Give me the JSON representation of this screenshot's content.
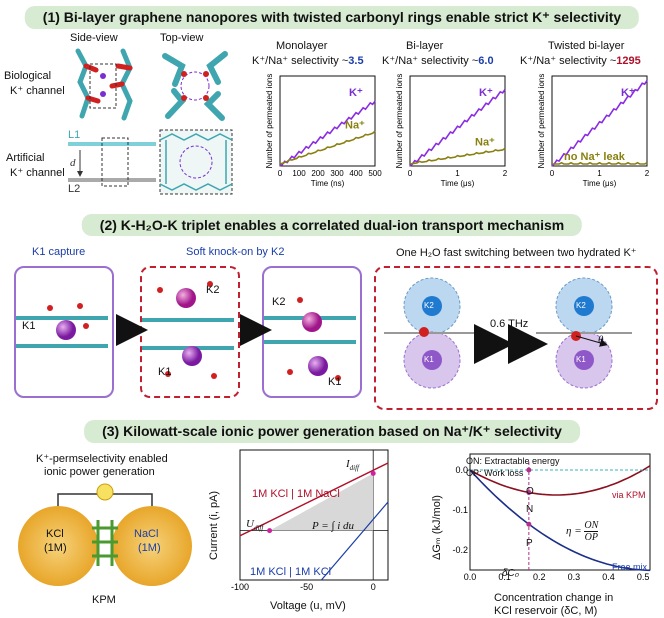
{
  "section1": {
    "title": "(1) Bi-layer graphene nanopores with twisted carbonyl rings enable strict K⁺ selectivity",
    "side_view": "Side-view",
    "top_view": "Top-view",
    "bio_label_1": "Biological",
    "bio_label_2": "K⁺ channel",
    "art_label_1": "Artificial",
    "art_label_2": "K⁺ channel",
    "layer_L1": "L1",
    "layer_L2": "L2",
    "layer_d": "d",
    "plots": [
      {
        "title": "Monolayer",
        "sel_text": "K⁺/Na⁺ selectivity ~",
        "sel_value": "3.5",
        "xlabel": "Time (ns)",
        "ticks": [
          "0",
          "100",
          "200",
          "300",
          "400",
          "500"
        ],
        "k_label": "K⁺",
        "na_label": "Na⁺"
      },
      {
        "title": "Bi-layer",
        "sel_text": "K⁺/Na⁺ selectivity ~",
        "sel_value": "6.0",
        "xlabel": "Time (μs)",
        "ticks": [
          "0",
          "1",
          "2"
        ],
        "k_label": "K⁺",
        "na_label": "Na⁺"
      },
      {
        "title": "Twisted bi-layer",
        "sel_text": "K⁺/Na⁺ selectivity ~",
        "sel_value": "1295",
        "xlabel": "Time (μs)",
        "ticks": [
          "0",
          "1",
          "2"
        ],
        "k_label": "K⁺",
        "na_label": "no Na⁺ leak"
      }
    ],
    "ylabel": "Number of permeated ions"
  },
  "section2": {
    "title": "(2) K-H₂O-K triplet enables a correlated dual-ion transport mechanism",
    "k1_capture": "K1 capture",
    "knock_on": "Soft knock-on by K2",
    "switch_title": "One H₂O fast switching between two hydrated K⁺",
    "freq": "0.6 THz",
    "K1": "K1",
    "K2": "K2",
    "theta": "θ"
  },
  "section3": {
    "title": "(3) Kilowatt-scale ionic power generation based on Na⁺/K⁺ selectivity",
    "left_title_1": "K⁺-permselectivity enabled",
    "left_title_2": "ionic power generation",
    "kcl": "KCl",
    "kcl_conc": "(1M)",
    "nacl": "NaCl",
    "nacl_conc": "(1M)",
    "kpm": "KPM",
    "iv": {
      "ylabel": "Current (i, pA)",
      "xlabel": "Voltage (u, mV)",
      "ticks_x": [
        "-100",
        "-50",
        "0"
      ],
      "label_red": "1M KCl | 1M NaCl",
      "label_blue": "1M KCl | 1M KCl",
      "I_diff": "I",
      "I_sub": "diff",
      "U_diff": "U",
      "U_sub": "diff",
      "eq": "P = ∫ i du"
    },
    "energy": {
      "ylabel": "ΔGₘ (kJ/mol)",
      "xlabel_1": "Concentration change in",
      "xlabel_2": "KCl reservoir (δC, M)",
      "yticks": [
        "0.0",
        "-0.1",
        "-0.2"
      ],
      "xticks": [
        "0.0",
        "0.1",
        "0.2",
        "0.3",
        "0.4",
        "0.5"
      ],
      "legend_on": "ON: Extractable energy",
      "legend_op": "OP: Work loss",
      "via_kpm": "via KPM",
      "free_mix": "Free mix",
      "O": "O",
      "N": "N",
      "P": "P",
      "dc0": "δC₀",
      "eta": "η =",
      "eta_num": "ON",
      "eta_den": "OP"
    }
  }
}
